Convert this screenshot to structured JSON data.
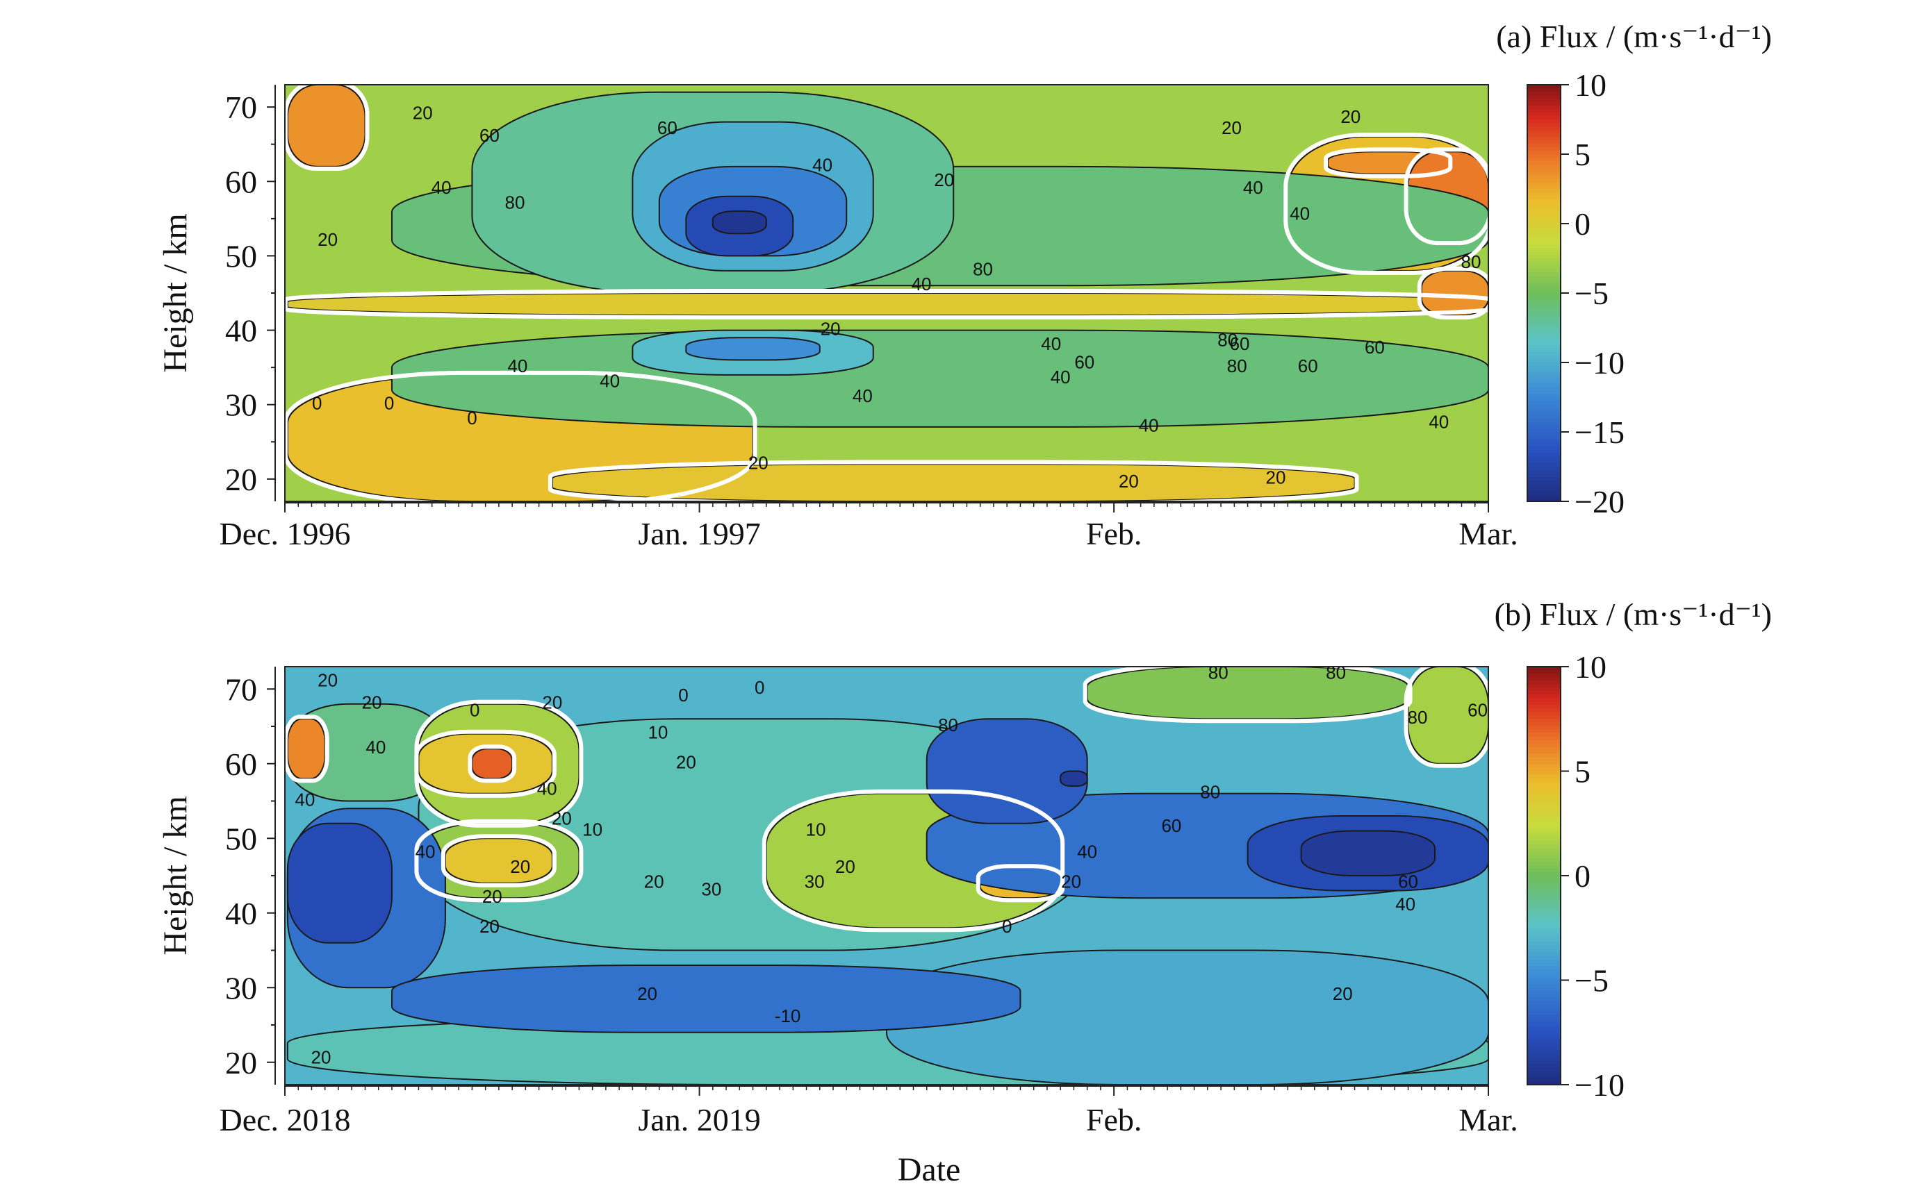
{
  "figure": {
    "xlabel": "Date"
  },
  "chart_data": [
    {
      "type": "heatmap",
      "title": "(a)  Flux / (m·s⁻¹·d⁻¹)",
      "panel": "(a)",
      "ylabel": "Height / km",
      "xlabel": "",
      "x_ticks": [
        "Dec. 1996",
        "Jan. 1997",
        "Feb.",
        "Mar."
      ],
      "x_range": [
        "1996-12-01",
        "1997-03-01"
      ],
      "y_ticks": [
        20,
        30,
        40,
        50,
        60,
        70
      ],
      "ylim": [
        17,
        73
      ],
      "colorbar": {
        "min": -20,
        "max": 10,
        "ticks": [
          10,
          5,
          0,
          -5,
          -10,
          -15,
          -20
        ],
        "tick_labels": [
          "10",
          "5",
          "0",
          "−5",
          "−10",
          "−15",
          "−20"
        ]
      },
      "base_value": -3,
      "regions": [
        {
          "x": [
            0.2,
            35.0
          ],
          "y": [
            17,
            34
          ],
          "value": 1.5
        },
        {
          "x": [
            20.0,
            80.0
          ],
          "y": [
            17,
            22
          ],
          "value": 1.0
        },
        {
          "x": [
            0.2,
            90.0
          ],
          "y": [
            42,
            45
          ],
          "value": 0.5
        },
        {
          "x": [
            0.2,
            6.0
          ],
          "y": [
            62,
            73
          ],
          "value": 3.5
        },
        {
          "x": [
            75.0,
            90.0
          ],
          "y": [
            48,
            66
          ],
          "value": 1.5
        },
        {
          "x": [
            78.0,
            87.0
          ],
          "y": [
            61,
            64
          ],
          "value": 3.5
        },
        {
          "x": [
            84.0,
            90.0
          ],
          "y": [
            52,
            64
          ],
          "value": 4.5
        },
        {
          "x": [
            85.0,
            90.0
          ],
          "y": [
            42,
            48
          ],
          "value": 3.5
        },
        {
          "x": [
            8.0,
            90.0
          ],
          "y": [
            27,
            40
          ],
          "value": -6
        },
        {
          "x": [
            8.0,
            90.0
          ],
          "y": [
            46,
            62
          ],
          "value": -6
        },
        {
          "x": [
            14.0,
            50.0
          ],
          "y": [
            45,
            72
          ],
          "value": -7
        },
        {
          "x": [
            26.0,
            44.0
          ],
          "y": [
            48,
            68
          ],
          "value": -10
        },
        {
          "x": [
            28.0,
            42.0
          ],
          "y": [
            50,
            62
          ],
          "value": -13
        },
        {
          "x": [
            30.0,
            38.0
          ],
          "y": [
            50,
            58
          ],
          "value": -17
        },
        {
          "x": [
            32.0,
            36.0
          ],
          "y": [
            53,
            56
          ],
          "value": -19
        },
        {
          "x": [
            26.0,
            44.0
          ],
          "y": [
            34,
            40
          ],
          "value": -9
        },
        {
          "x": [
            30.0,
            40.0
          ],
          "y": [
            36,
            39
          ],
          "value": -12
        }
      ],
      "contour_labels": [
        {
          "text": "20",
          "x": 10.3,
          "y": 69
        },
        {
          "text": "60",
          "x": 15.3,
          "y": 66
        },
        {
          "text": "40",
          "x": 11.7,
          "y": 59
        },
        {
          "text": "80",
          "x": 17.2,
          "y": 57
        },
        {
          "text": "20",
          "x": 3.2,
          "y": 52
        },
        {
          "text": "60",
          "x": 28.6,
          "y": 67
        },
        {
          "text": "40",
          "x": 40.2,
          "y": 62
        },
        {
          "text": "20",
          "x": 49.3,
          "y": 60
        },
        {
          "text": "40",
          "x": 47.6,
          "y": 46
        },
        {
          "text": "40",
          "x": 17.4,
          "y": 35
        },
        {
          "text": "40",
          "x": 24.3,
          "y": 33
        },
        {
          "text": "40",
          "x": 43.2,
          "y": 31
        },
        {
          "text": "0",
          "x": 2.4,
          "y": 30
        },
        {
          "text": "0",
          "x": 7.8,
          "y": 30
        },
        {
          "text": "0",
          "x": 14.0,
          "y": 28
        },
        {
          "text": "20",
          "x": 35.4,
          "y": 22
        },
        {
          "text": "20",
          "x": 63.1,
          "y": 19.5
        },
        {
          "text": "20",
          "x": 74.1,
          "y": 20
        },
        {
          "text": "40",
          "x": 64.6,
          "y": 27
        },
        {
          "text": "40",
          "x": 86.3,
          "y": 27.5
        },
        {
          "text": "40",
          "x": 58.0,
          "y": 33.5
        },
        {
          "text": "60",
          "x": 59.8,
          "y": 35.5
        },
        {
          "text": "80",
          "x": 71.2,
          "y": 35
        },
        {
          "text": "60",
          "x": 71.4,
          "y": 38
        },
        {
          "text": "60",
          "x": 76.5,
          "y": 35
        },
        {
          "text": "60",
          "x": 81.5,
          "y": 37.5
        },
        {
          "text": "40",
          "x": 57.3,
          "y": 38
        },
        {
          "text": "80",
          "x": 52.2,
          "y": 48
        },
        {
          "text": "40",
          "x": 72.4,
          "y": 59
        },
        {
          "text": "40",
          "x": 75.9,
          "y": 55.5
        },
        {
          "text": "20",
          "x": 70.8,
          "y": 67
        },
        {
          "text": "20",
          "x": 79.7,
          "y": 68.5
        },
        {
          "text": "80",
          "x": 88.7,
          "y": 49
        },
        {
          "text": "80",
          "x": 70.5,
          "y": 38.5
        },
        {
          "text": "20",
          "x": 40.8,
          "y": 40
        }
      ]
    },
    {
      "type": "heatmap",
      "title": "(b)  Flux / (m·s⁻¹·d⁻¹)",
      "panel": "(b)",
      "ylabel": "Height / km",
      "xlabel": "",
      "x_ticks": [
        "Dec. 2018",
        "Jan. 2019",
        "Feb.",
        "Mar."
      ],
      "x_range": [
        "2018-12-01",
        "2019-03-01"
      ],
      "y_ticks": [
        20,
        30,
        40,
        50,
        60,
        70
      ],
      "ylim": [
        17,
        73
      ],
      "colorbar": {
        "min": -10,
        "max": 10,
        "ticks": [
          10,
          5,
          0,
          -5,
          -10
        ],
        "tick_labels": [
          "10",
          "5",
          "0",
          "−5",
          "−10"
        ]
      },
      "base_value": -3,
      "regions": [
        {
          "x": [
            0.2,
            90.0
          ],
          "y": [
            17,
            26
          ],
          "value": -2
        },
        {
          "x": [
            45.0,
            90.0
          ],
          "y": [
            17,
            35
          ],
          "value": -3.5
        },
        {
          "x": [
            10.0,
            60.0
          ],
          "y": [
            35,
            66
          ],
          "value": -2
        },
        {
          "x": [
            0.2,
            12.0
          ],
          "y": [
            55,
            68
          ],
          "value": -1
        },
        {
          "x": [
            0.2,
            3.0
          ],
          "y": [
            58,
            66
          ],
          "value": 6
        },
        {
          "x": [
            10.0,
            22.0
          ],
          "y": [
            52,
            68
          ],
          "value": 1.5
        },
        {
          "x": [
            10.0,
            22.0
          ],
          "y": [
            42,
            52
          ],
          "value": 1
        },
        {
          "x": [
            10.0,
            20.0
          ],
          "y": [
            56,
            64
          ],
          "value": 4
        },
        {
          "x": [
            14.0,
            17.0
          ],
          "y": [
            58,
            62
          ],
          "value": 7
        },
        {
          "x": [
            12.0,
            20.0
          ],
          "y": [
            44,
            50
          ],
          "value": 4
        },
        {
          "x": [
            36.0,
            58.0
          ],
          "y": [
            38,
            56
          ],
          "value": 1.5
        },
        {
          "x": [
            52.0,
            58.0
          ],
          "y": [
            42,
            46
          ],
          "value": 4.5
        },
        {
          "x": [
            0.2,
            12.0
          ],
          "y": [
            30,
            54
          ],
          "value": -6
        },
        {
          "x": [
            0.2,
            8.0
          ],
          "y": [
            36,
            52
          ],
          "value": -8
        },
        {
          "x": [
            8.0,
            55.0
          ],
          "y": [
            24,
            33
          ],
          "value": -6
        },
        {
          "x": [
            48.0,
            90.0
          ],
          "y": [
            42,
            56
          ],
          "value": -6
        },
        {
          "x": [
            48.0,
            60.0
          ],
          "y": [
            52,
            66
          ],
          "value": -7
        },
        {
          "x": [
            72.0,
            90.0
          ],
          "y": [
            43,
            53
          ],
          "value": -8
        },
        {
          "x": [
            76.0,
            86.0
          ],
          "y": [
            45,
            51
          ],
          "value": -9
        },
        {
          "x": [
            58.0,
            60.0
          ],
          "y": [
            57,
            59
          ],
          "value": -9
        },
        {
          "x": [
            84.0,
            90.0
          ],
          "y": [
            60,
            73
          ],
          "value": 1.5
        },
        {
          "x": [
            60.0,
            84.0
          ],
          "y": [
            66,
            73
          ],
          "value": 0.5
        }
      ],
      "contour_labels": [
        {
          "text": "20",
          "x": 3.2,
          "y": 71
        },
        {
          "text": "20",
          "x": 6.5,
          "y": 68
        },
        {
          "text": "40",
          "x": 6.8,
          "y": 62
        },
        {
          "text": "40",
          "x": 1.5,
          "y": 55
        },
        {
          "text": "40",
          "x": 10.5,
          "y": 48
        },
        {
          "text": "0",
          "x": 14.2,
          "y": 67
        },
        {
          "text": "20",
          "x": 20.0,
          "y": 68
        },
        {
          "text": "40",
          "x": 19.6,
          "y": 56.5
        },
        {
          "text": "20",
          "x": 17.6,
          "y": 46
        },
        {
          "text": "20",
          "x": 20.7,
          "y": 52.5
        },
        {
          "text": "20",
          "x": 15.5,
          "y": 42
        },
        {
          "text": "10",
          "x": 23.0,
          "y": 51
        },
        {
          "text": "20",
          "x": 15.3,
          "y": 38
        },
        {
          "text": "0",
          "x": 29.8,
          "y": 69
        },
        {
          "text": "0",
          "x": 35.5,
          "y": 70
        },
        {
          "text": "10",
          "x": 27.9,
          "y": 64
        },
        {
          "text": "20",
          "x": 30.0,
          "y": 60
        },
        {
          "text": "20",
          "x": 27.6,
          "y": 44
        },
        {
          "text": "30",
          "x": 31.9,
          "y": 43
        },
        {
          "text": "30",
          "x": 39.6,
          "y": 44
        },
        {
          "text": "20",
          "x": 41.9,
          "y": 46
        },
        {
          "text": "10",
          "x": 39.7,
          "y": 51
        },
        {
          "text": "0",
          "x": 54.0,
          "y": 38
        },
        {
          "text": "20",
          "x": 27.1,
          "y": 29
        },
        {
          "text": "-10",
          "x": 37.6,
          "y": 26
        },
        {
          "text": "20",
          "x": 2.7,
          "y": 20.5
        },
        {
          "text": "80",
          "x": 49.6,
          "y": 65
        },
        {
          "text": "80",
          "x": 69.8,
          "y": 72
        },
        {
          "text": "80",
          "x": 84.7,
          "y": 66
        },
        {
          "text": "80",
          "x": 69.2,
          "y": 56
        },
        {
          "text": "60",
          "x": 66.3,
          "y": 51.5
        },
        {
          "text": "40",
          "x": 60.0,
          "y": 48
        },
        {
          "text": "20",
          "x": 58.8,
          "y": 44
        },
        {
          "text": "60",
          "x": 84.0,
          "y": 44
        },
        {
          "text": "60",
          "x": 89.2,
          "y": 67
        },
        {
          "text": "40",
          "x": 83.8,
          "y": 41
        },
        {
          "text": "20",
          "x": 79.1,
          "y": 29
        },
        {
          "text": "80",
          "x": 78.6,
          "y": 72
        }
      ]
    }
  ]
}
